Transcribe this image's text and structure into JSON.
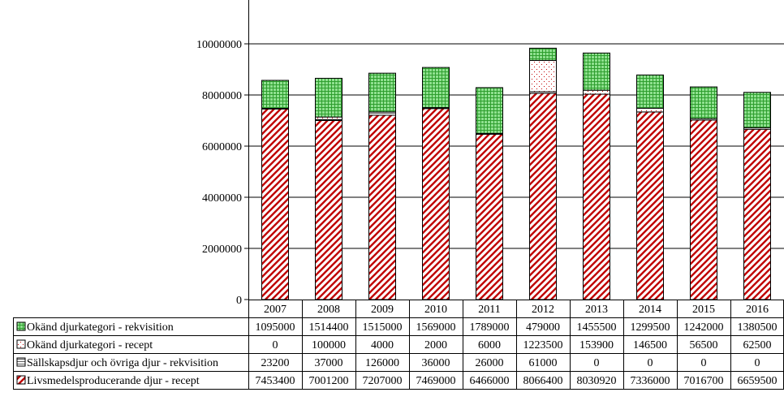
{
  "chart_data": {
    "type": "bar",
    "stacked": true,
    "categories": [
      "2007",
      "2008",
      "2009",
      "2010",
      "2011",
      "2012",
      "2013",
      "2014",
      "2015",
      "2016"
    ],
    "ylim": [
      0,
      10000000
    ],
    "yticks": [
      0,
      2000000,
      4000000,
      6000000,
      8000000,
      10000000
    ],
    "ytick_labels": [
      "0",
      "2000000",
      "4000000",
      "6000000",
      "8000000",
      "10000000"
    ],
    "grid": true,
    "legend_placement": "data-table",
    "series": [
      {
        "name": "Livsmedelsproducerande djur - recept",
        "pattern": "diagonal-hatch",
        "color": "#c00000",
        "values": [
          7453400,
          7001200,
          7207000,
          7469000,
          6466000,
          8066400,
          8030920,
          7336000,
          7016700,
          6659500
        ],
        "labels": [
          "7453400",
          "7001200",
          "7207000",
          "7469000",
          "6466000",
          "8066400",
          "8030920",
          "7336000",
          "7016700",
          "6659500"
        ]
      },
      {
        "name": "Sällskapsdjur och övriga djur - rekvisition",
        "pattern": "horizontal-lines",
        "color": "#808080",
        "values": [
          23200,
          37000,
          126000,
          36000,
          26000,
          61000,
          0,
          0,
          0,
          0
        ],
        "labels": [
          "23200",
          "37000",
          "126000",
          "36000",
          "26000",
          "61000",
          "0",
          "0",
          "0",
          "0"
        ]
      },
      {
        "name": "Okänd djurkategori - recept",
        "pattern": "dots",
        "color": "#c00000",
        "values": [
          0,
          100000,
          4000,
          2000,
          6000,
          1223500,
          153900,
          146500,
          56500,
          62500
        ],
        "labels": [
          "0",
          "100000",
          "4000",
          "2000",
          "6000",
          "1223500",
          "153900",
          "146500",
          "56500",
          "62500"
        ]
      },
      {
        "name": "Okänd djurkategori - rekvisition",
        "pattern": "grid",
        "color": "#33a833",
        "values": [
          1095000,
          1514400,
          1515000,
          1569000,
          1789000,
          479000,
          1455500,
          1299500,
          1242000,
          1380500
        ],
        "labels": [
          "1095000",
          "1514400",
          "1515000",
          "1569000",
          "1789000",
          "479000",
          "1455500",
          "1299500",
          "1242000",
          "1380500"
        ]
      }
    ],
    "table_row_order": [
      3,
      2,
      1,
      0
    ]
  }
}
